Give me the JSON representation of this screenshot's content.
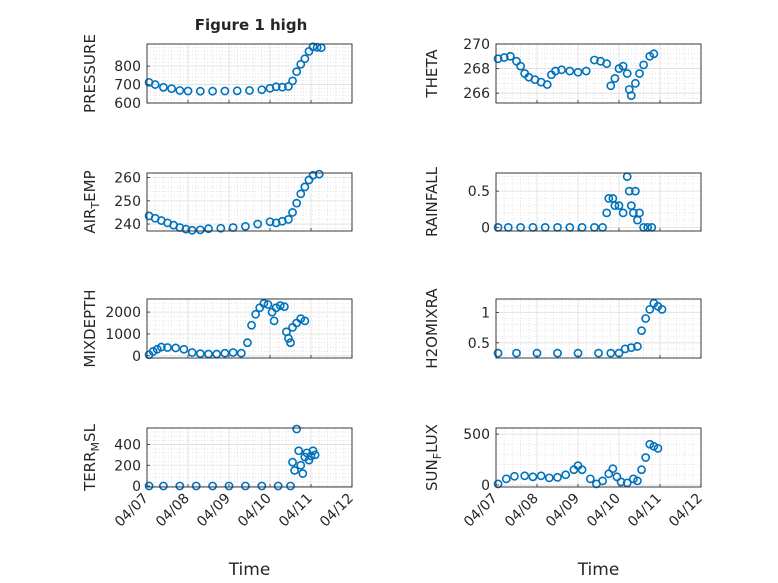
{
  "figure_title": "Figure 1 high",
  "colors": {
    "marker": "#0072BD",
    "axis": "#262626",
    "grid": "#dddddd",
    "background": "#ffffff"
  },
  "x_ticks": [
    "04/07",
    "04/08",
    "04/09",
    "04/10",
    "04/11",
    "04/12"
  ],
  "xlabel": "Time",
  "chart_data": [
    {
      "type": "scatter",
      "title": "Figure 1 high",
      "ylabel": "PRESSURE",
      "ylim": [
        600,
        920
      ],
      "yticks": [
        600,
        700,
        800
      ],
      "xlim": [
        0,
        5
      ],
      "grid": true,
      "marker": "open-circle",
      "points": [
        [
          0.05,
          712
        ],
        [
          0.2,
          700
        ],
        [
          0.4,
          685
        ],
        [
          0.6,
          678
        ],
        [
          0.8,
          668
        ],
        [
          1.0,
          665
        ],
        [
          1.3,
          664
        ],
        [
          1.6,
          664
        ],
        [
          1.9,
          665
        ],
        [
          2.2,
          666
        ],
        [
          2.5,
          668
        ],
        [
          2.8,
          672
        ],
        [
          3.0,
          680
        ],
        [
          3.15,
          688
        ],
        [
          3.3,
          686
        ],
        [
          3.45,
          690
        ],
        [
          3.55,
          720
        ],
        [
          3.65,
          770
        ],
        [
          3.75,
          810
        ],
        [
          3.85,
          840
        ],
        [
          3.95,
          880
        ],
        [
          4.05,
          905
        ],
        [
          4.15,
          902
        ],
        [
          4.25,
          900
        ]
      ]
    },
    {
      "type": "scatter",
      "ylabel": "THETA",
      "ylim": [
        265.2,
        270
      ],
      "yticks": [
        266,
        268,
        270
      ],
      "xlim": [
        0,
        5
      ],
      "grid": true,
      "marker": "open-circle",
      "points": [
        [
          0.05,
          268.8
        ],
        [
          0.2,
          268.9
        ],
        [
          0.35,
          269.0
        ],
        [
          0.5,
          268.6
        ],
        [
          0.6,
          268.2
        ],
        [
          0.7,
          267.6
        ],
        [
          0.8,
          267.3
        ],
        [
          0.95,
          267.1
        ],
        [
          1.1,
          266.9
        ],
        [
          1.25,
          266.7
        ],
        [
          1.35,
          267.5
        ],
        [
          1.45,
          267.8
        ],
        [
          1.6,
          267.9
        ],
        [
          1.8,
          267.8
        ],
        [
          2.0,
          267.7
        ],
        [
          2.2,
          267.8
        ],
        [
          2.4,
          268.7
        ],
        [
          2.55,
          268.6
        ],
        [
          2.7,
          268.4
        ],
        [
          2.8,
          266.6
        ],
        [
          2.9,
          267.2
        ],
        [
          3.0,
          268.0
        ],
        [
          3.1,
          268.2
        ],
        [
          3.2,
          267.6
        ],
        [
          3.25,
          266.3
        ],
        [
          3.3,
          265.8
        ],
        [
          3.4,
          266.8
        ],
        [
          3.5,
          267.6
        ],
        [
          3.6,
          268.3
        ],
        [
          3.75,
          269.0
        ],
        [
          3.85,
          269.2
        ]
      ]
    },
    {
      "type": "scatter",
      "ylabel": "AIR_TEMP",
      "ylim": [
        237,
        262
      ],
      "yticks": [
        240,
        250,
        260
      ],
      "xlim": [
        0,
        5
      ],
      "grid": true,
      "marker": "open-circle",
      "points": [
        [
          0.05,
          243.5
        ],
        [
          0.2,
          242.5
        ],
        [
          0.35,
          241.5
        ],
        [
          0.5,
          240.5
        ],
        [
          0.65,
          239.5
        ],
        [
          0.8,
          238.5
        ],
        [
          0.95,
          237.8
        ],
        [
          1.1,
          237.3
        ],
        [
          1.3,
          237.5
        ],
        [
          1.5,
          238
        ],
        [
          1.8,
          238.2
        ],
        [
          2.1,
          238.5
        ],
        [
          2.4,
          239
        ],
        [
          2.7,
          240
        ],
        [
          3.0,
          241
        ],
        [
          3.15,
          240.5
        ],
        [
          3.3,
          241.2
        ],
        [
          3.45,
          242
        ],
        [
          3.55,
          245
        ],
        [
          3.65,
          249
        ],
        [
          3.75,
          253
        ],
        [
          3.85,
          256
        ],
        [
          3.95,
          259
        ],
        [
          4.05,
          261
        ],
        [
          4.2,
          261.5
        ]
      ]
    },
    {
      "type": "scatter",
      "ylabel": "RAINFALL",
      "ylim": [
        -0.05,
        0.75
      ],
      "yticks": [
        0,
        0.5
      ],
      "xlim": [
        0,
        5
      ],
      "grid": true,
      "marker": "open-circle",
      "points": [
        [
          0.05,
          0
        ],
        [
          0.3,
          0
        ],
        [
          0.6,
          0
        ],
        [
          0.9,
          0
        ],
        [
          1.2,
          0
        ],
        [
          1.5,
          0
        ],
        [
          1.8,
          0
        ],
        [
          2.1,
          0
        ],
        [
          2.4,
          0
        ],
        [
          2.6,
          0
        ],
        [
          2.7,
          0.2
        ],
        [
          2.75,
          0.4
        ],
        [
          2.85,
          0.4
        ],
        [
          2.9,
          0.3
        ],
        [
          3.0,
          0.3
        ],
        [
          3.1,
          0.2
        ],
        [
          3.2,
          0.7
        ],
        [
          3.25,
          0.5
        ],
        [
          3.3,
          0.3
        ],
        [
          3.35,
          0.2
        ],
        [
          3.4,
          0.5
        ],
        [
          3.45,
          0.1
        ],
        [
          3.5,
          0.2
        ],
        [
          3.6,
          0
        ],
        [
          3.7,
          0
        ],
        [
          3.8,
          0
        ]
      ]
    },
    {
      "type": "scatter",
      "ylabel": "MIXDEPTH",
      "ylim": [
        -100,
        2600
      ],
      "yticks": [
        0,
        1000,
        2000
      ],
      "xlim": [
        0,
        5
      ],
      "grid": true,
      "marker": "open-circle",
      "points": [
        [
          0.05,
          50
        ],
        [
          0.15,
          200
        ],
        [
          0.25,
          300
        ],
        [
          0.35,
          400
        ],
        [
          0.5,
          380
        ],
        [
          0.7,
          360
        ],
        [
          0.9,
          300
        ],
        [
          1.1,
          150
        ],
        [
          1.3,
          100
        ],
        [
          1.5,
          80
        ],
        [
          1.7,
          80
        ],
        [
          1.9,
          120
        ],
        [
          2.1,
          150
        ],
        [
          2.3,
          120
        ],
        [
          2.45,
          600
        ],
        [
          2.55,
          1400
        ],
        [
          2.65,
          1900
        ],
        [
          2.75,
          2200
        ],
        [
          2.85,
          2400
        ],
        [
          2.95,
          2350
        ],
        [
          3.05,
          2000
        ],
        [
          3.1,
          1600
        ],
        [
          3.15,
          2200
        ],
        [
          3.25,
          2300
        ],
        [
          3.35,
          2250
        ],
        [
          3.4,
          1100
        ],
        [
          3.45,
          800
        ],
        [
          3.5,
          600
        ],
        [
          3.55,
          1300
        ],
        [
          3.65,
          1500
        ],
        [
          3.75,
          1700
        ],
        [
          3.85,
          1600
        ]
      ]
    },
    {
      "type": "scatter",
      "ylabel": "H2OMIXRA",
      "ylim": [
        0.25,
        1.22
      ],
      "yticks": [
        0.5,
        1
      ],
      "xlim": [
        0,
        5
      ],
      "grid": true,
      "marker": "open-circle",
      "points": [
        [
          0.05,
          0.33
        ],
        [
          0.5,
          0.33
        ],
        [
          1.0,
          0.33
        ],
        [
          1.5,
          0.33
        ],
        [
          2.0,
          0.33
        ],
        [
          2.5,
          0.33
        ],
        [
          2.8,
          0.33
        ],
        [
          3.0,
          0.33
        ],
        [
          3.15,
          0.4
        ],
        [
          3.3,
          0.42
        ],
        [
          3.45,
          0.44
        ],
        [
          3.55,
          0.7
        ],
        [
          3.65,
          0.9
        ],
        [
          3.75,
          1.05
        ],
        [
          3.85,
          1.15
        ],
        [
          3.95,
          1.1
        ],
        [
          4.05,
          1.05
        ]
      ]
    },
    {
      "type": "scatter",
      "ylabel": "TERR_MSL",
      "ylim": [
        -10,
        560
      ],
      "yticks": [
        0,
        200,
        400
      ],
      "xlim": [
        0,
        5
      ],
      "grid": true,
      "marker": "open-circle",
      "points": [
        [
          0.05,
          0
        ],
        [
          0.4,
          0
        ],
        [
          0.8,
          0
        ],
        [
          1.2,
          0
        ],
        [
          1.6,
          0
        ],
        [
          2.0,
          0
        ],
        [
          2.4,
          0
        ],
        [
          2.8,
          0
        ],
        [
          3.2,
          0
        ],
        [
          3.5,
          0
        ],
        [
          3.55,
          230
        ],
        [
          3.6,
          150
        ],
        [
          3.65,
          550
        ],
        [
          3.7,
          340
        ],
        [
          3.75,
          200
        ],
        [
          3.8,
          120
        ],
        [
          3.85,
          280
        ],
        [
          3.9,
          320
        ],
        [
          3.95,
          250
        ],
        [
          4.0,
          290
        ],
        [
          4.05,
          340
        ],
        [
          4.1,
          300
        ]
      ]
    },
    {
      "type": "scatter",
      "ylabel": "SUN_FLUX",
      "ylim": [
        -20,
        560
      ],
      "yticks": [
        0,
        500
      ],
      "xlim": [
        0,
        5
      ],
      "grid": true,
      "marker": "open-circle",
      "points": [
        [
          0.05,
          10
        ],
        [
          0.25,
          60
        ],
        [
          0.45,
          85
        ],
        [
          0.7,
          90
        ],
        [
          0.9,
          80
        ],
        [
          1.1,
          90
        ],
        [
          1.3,
          70
        ],
        [
          1.5,
          75
        ],
        [
          1.7,
          100
        ],
        [
          1.9,
          150
        ],
        [
          2.0,
          190
        ],
        [
          2.1,
          150
        ],
        [
          2.3,
          60
        ],
        [
          2.45,
          10
        ],
        [
          2.6,
          40
        ],
        [
          2.75,
          110
        ],
        [
          2.85,
          160
        ],
        [
          2.95,
          80
        ],
        [
          3.05,
          30
        ],
        [
          3.2,
          20
        ],
        [
          3.35,
          60
        ],
        [
          3.45,
          40
        ],
        [
          3.55,
          150
        ],
        [
          3.65,
          270
        ],
        [
          3.75,
          400
        ],
        [
          3.85,
          380
        ],
        [
          3.95,
          360
        ]
      ]
    }
  ]
}
